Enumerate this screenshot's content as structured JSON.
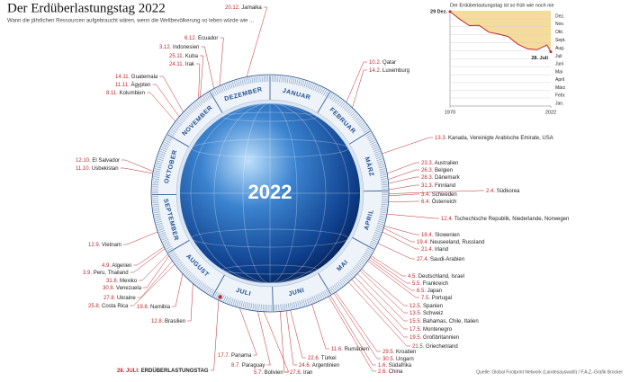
{
  "header": {
    "title": "Der Erdüberlastungstag 2022",
    "subtitle": "Wann die jährlichen Ressourcen aufgebraucht wären, wenn die Weltbevölkerung so leben würde wie ..."
  },
  "globe_label": "2022",
  "months": [
    "JANUAR",
    "FEBRUAR",
    "MÄRZ",
    "APRIL",
    "MAI",
    "JUNI",
    "JULI",
    "AUGUST",
    "SEPTEMBER",
    "OKTOBER",
    "NOVEMBER",
    "DEZEMBER"
  ],
  "entries": [
    {
      "date": "20.12.",
      "label": "Jamaika"
    },
    {
      "date": "6.12.",
      "label": "Ecuador"
    },
    {
      "date": "3.12.",
      "label": "Indonesien"
    },
    {
      "date": "25.11.",
      "label": "Kuba"
    },
    {
      "date": "24.11.",
      "label": "Irak"
    },
    {
      "date": "14.11.",
      "label": "Guatemala"
    },
    {
      "date": "11.11.",
      "label": "Ägypten"
    },
    {
      "date": "8.11.",
      "label": "Kolumbien"
    },
    {
      "date": "12.10.",
      "label": "El Salvador"
    },
    {
      "date": "11.10.",
      "label": "Usbekistan"
    },
    {
      "date": "12.9.",
      "label": "Vietnam"
    },
    {
      "date": "4.9.",
      "label": "Algerien"
    },
    {
      "date": "3.9.",
      "label": "Peru, Thailand"
    },
    {
      "date": "31.8.",
      "label": "Mexiko"
    },
    {
      "date": "30.8.",
      "label": "Venezuela"
    },
    {
      "date": "27.8.",
      "label": "Ukraine"
    },
    {
      "date": "25.8.",
      "label": "Costa Rica"
    },
    {
      "date": "19.8.",
      "label": "Namibia"
    },
    {
      "date": "12.8.",
      "label": "Brasilien"
    },
    {
      "date": "17.7.",
      "label": "Panama"
    },
    {
      "date": "8.7.",
      "label": "Paraguay"
    },
    {
      "date": "5.7.",
      "label": "Bolivien"
    },
    {
      "date": "27.6.",
      "label": "Iran"
    },
    {
      "date": "24.6.",
      "label": "Argentinien"
    },
    {
      "date": "22.6.",
      "label": "Türkei"
    },
    {
      "date": "11.6.",
      "label": "Rumänien"
    },
    {
      "date": "2.6.",
      "label": "China"
    },
    {
      "date": "1.6.",
      "label": "Südafrika"
    },
    {
      "date": "30.5.",
      "label": "Ungarn"
    },
    {
      "date": "29.5.",
      "label": "Kroatien"
    },
    {
      "date": "21.5.",
      "label": "Griechenland"
    },
    {
      "date": "19.5.",
      "label": "Großbritannien"
    },
    {
      "date": "17.5.",
      "label": "Montenegro"
    },
    {
      "date": "15.5.",
      "label": "Bahamas, Chile, Italien"
    },
    {
      "date": "13.5.",
      "label": "Schweiz"
    },
    {
      "date": "12.5.",
      "label": "Spanien"
    },
    {
      "date": "7.5.",
      "label": "Portugal"
    },
    {
      "date": "6.5.",
      "label": "Japan"
    },
    {
      "date": "5.5.",
      "label": "Frankreich"
    },
    {
      "date": "4.5.",
      "label": "Deutschland, Israel"
    },
    {
      "date": "27.4.",
      "label": "Saudi-Arabien"
    },
    {
      "date": "21.4.",
      "label": "Irland"
    },
    {
      "date": "19.4.",
      "label": "Neuseeland, Russland"
    },
    {
      "date": "18.4.",
      "label": "Slowenien"
    },
    {
      "date": "12.4.",
      "label": "Tschechische Republik, Niederlande, Norwegen"
    },
    {
      "date": "6.4.",
      "label": "Österreich"
    },
    {
      "date": "3.4.",
      "label": "Schweden"
    },
    {
      "date": "2.4.",
      "label": "Südkorea"
    },
    {
      "date": "31.3.",
      "label": "Finnland"
    },
    {
      "date": "28.3.",
      "label": "Dänemark"
    },
    {
      "date": "26.3.",
      "label": "Belgien"
    },
    {
      "date": "23.3.",
      "label": "Australien"
    },
    {
      "date": "13.3.",
      "label": "Kanada, Vereinigte Arabische Emirate, USA"
    },
    {
      "date": "14.2.",
      "label": "Luxemburg"
    },
    {
      "date": "10.2.",
      "label": "Qatar"
    }
  ],
  "highlight": {
    "date": "28. JULI:",
    "label": "ERDÜBERLASTUNGSTAG"
  },
  "source": "Quelle: Global Footprint Network (Landesauswahl) / F.A.Z.-Grafik Brocker",
  "chart_data": {
    "type": "line",
    "title": "Der Erdüberlastungstag ist so früh wie noch nie",
    "x": [
      1970,
      1975,
      1980,
      1985,
      1990,
      1995,
      2000,
      2005,
      2010,
      2015,
      2020,
      2022
    ],
    "values": [
      363,
      334,
      309,
      310,
      284,
      277,
      267,
      238,
      220,
      217,
      235,
      209
    ],
    "color": "#c0272d",
    "fill": "#f5dc9c",
    "xlim": [
      1970,
      2022
    ],
    "xticks": [
      1970,
      2022
    ],
    "ylim": [
      1,
      366
    ],
    "yticks": [
      {
        "value": 335,
        "label": "Dez."
      },
      {
        "value": 305,
        "label": "Nov."
      },
      {
        "value": 274,
        "label": "Okt."
      },
      {
        "value": 244,
        "label": "Sept."
      },
      {
        "value": 213,
        "label": "Aug."
      },
      {
        "value": 182,
        "label": "Juli"
      },
      {
        "value": 152,
        "label": "Juni"
      },
      {
        "value": 121,
        "label": "Mai"
      },
      {
        "value": 91,
        "label": "April"
      },
      {
        "value": 60,
        "label": "März"
      },
      {
        "value": 32,
        "label": "Febr."
      },
      {
        "value": 1,
        "label": "Jan."
      }
    ],
    "annotations": [
      "29 Dez.",
      "28. Juli"
    ]
  }
}
